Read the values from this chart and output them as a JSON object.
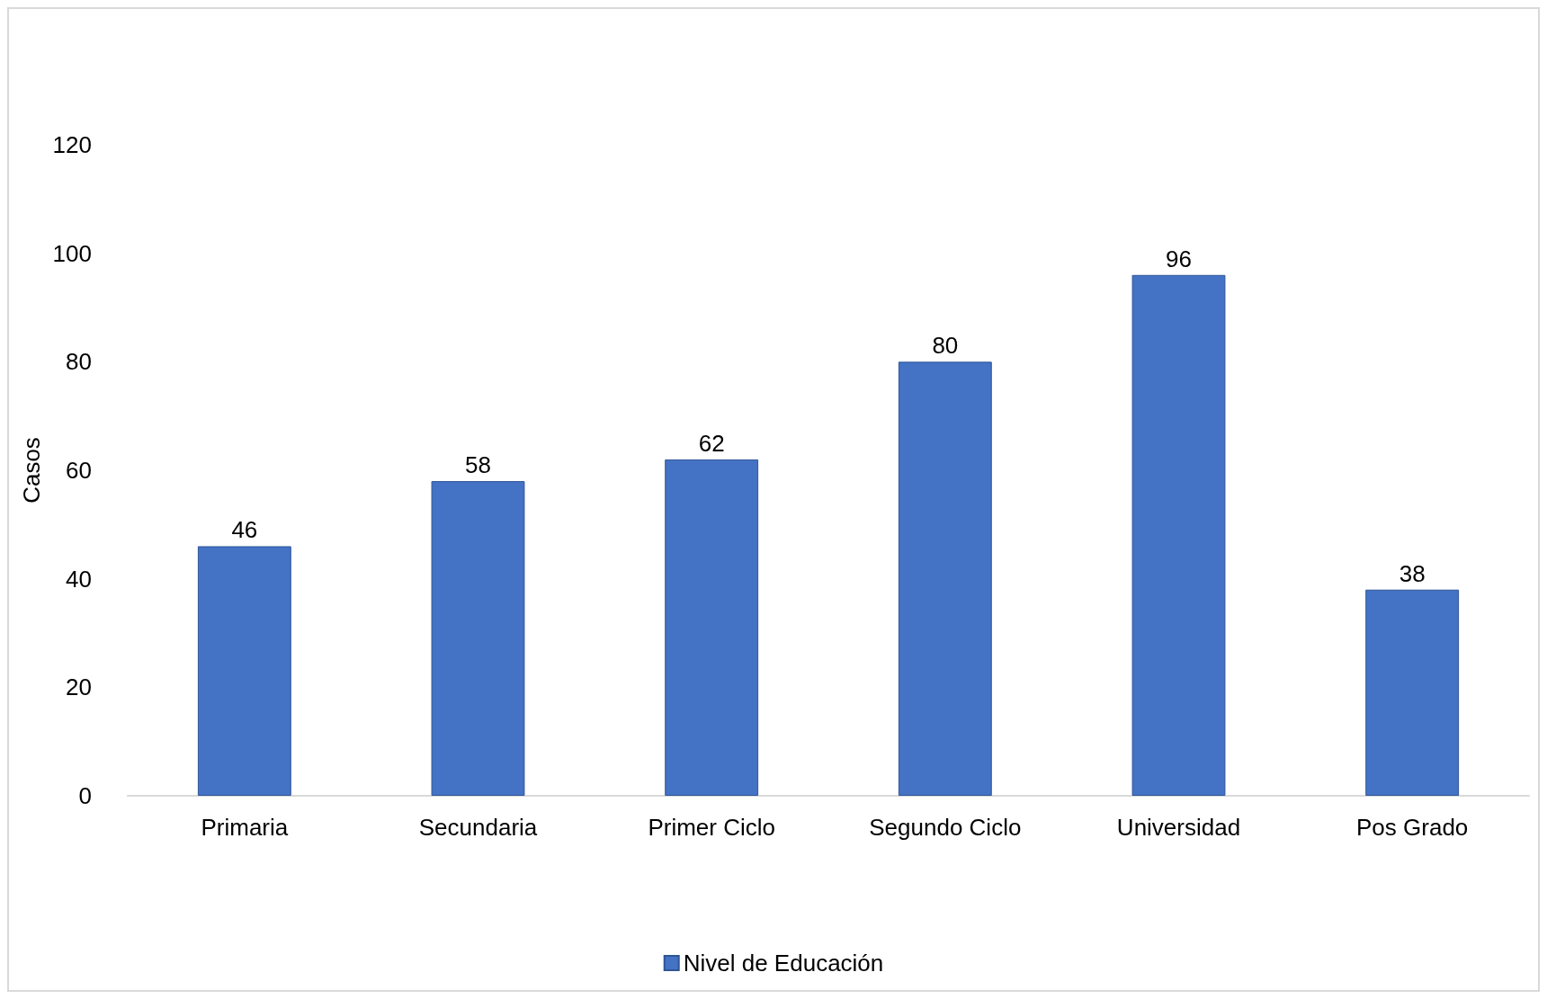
{
  "chart_data": {
    "type": "bar",
    "ylabel": "Casos",
    "categories": [
      "Primaria",
      "Secundaria",
      "Primer Ciclo",
      "Segundo Ciclo",
      "Universidad",
      "Pos Grado"
    ],
    "series": [
      {
        "name": "Nivel de Educación",
        "color": "#4472c4",
        "values": [
          46,
          58,
          62,
          80,
          96,
          38
        ]
      }
    ],
    "ylim": [
      0,
      120
    ],
    "yticks": [
      0,
      20,
      40,
      60,
      80,
      100,
      120
    ],
    "grid": false,
    "legend": "bottom",
    "data_labels": true
  }
}
